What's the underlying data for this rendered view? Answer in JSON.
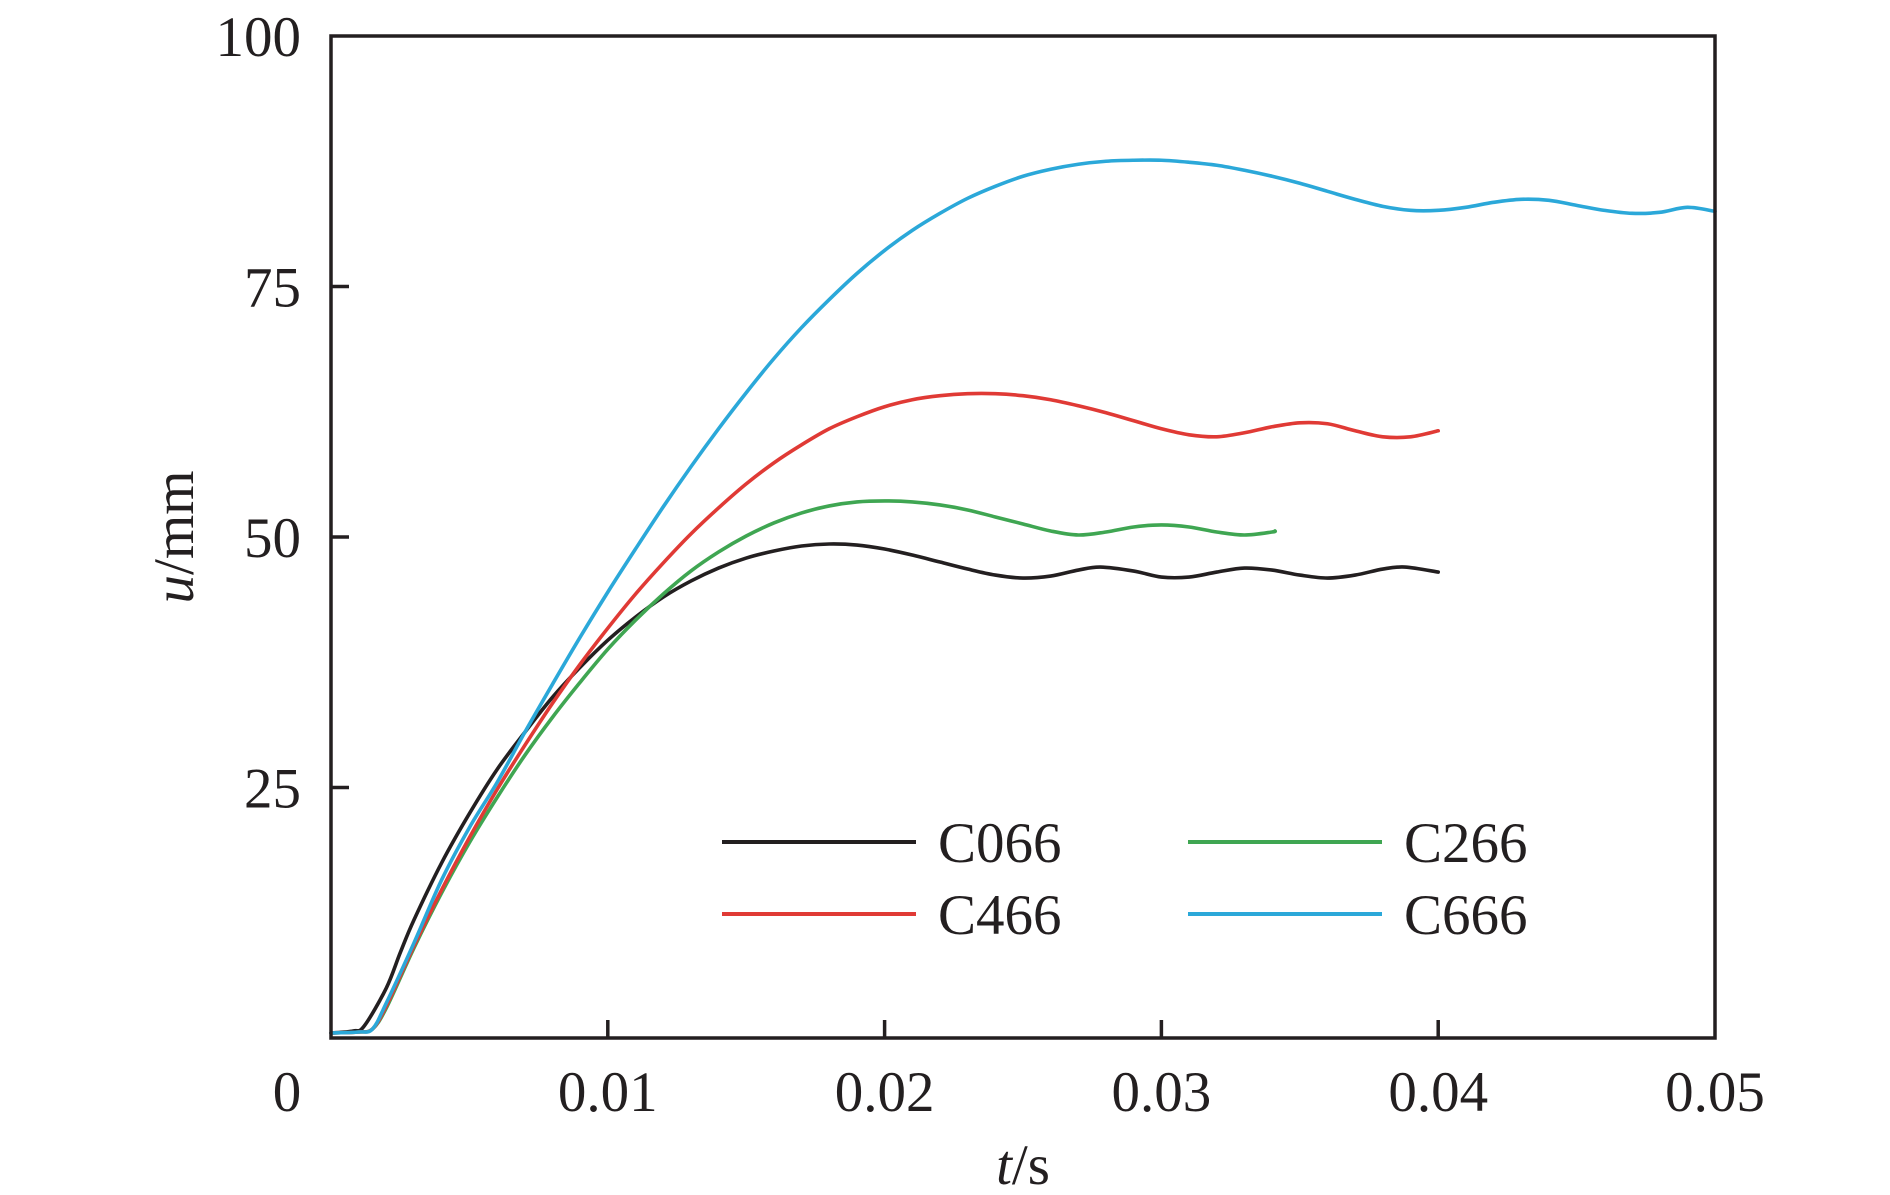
{
  "chart_data": {
    "type": "line",
    "title": "",
    "xlabel": {
      "var": "t",
      "unit": "/s"
    },
    "ylabel": {
      "var": "u",
      "unit": "/mm"
    },
    "xlim": [
      0,
      0.05
    ],
    "ylim": [
      0,
      100
    ],
    "x_ticks": [
      {
        "value": 0,
        "label": "0"
      },
      {
        "value": 0.01,
        "label": "0.01"
      },
      {
        "value": 0.02,
        "label": "0.02"
      },
      {
        "value": 0.03,
        "label": "0.03"
      },
      {
        "value": 0.04,
        "label": "0.04"
      },
      {
        "value": 0.05,
        "label": "0.05"
      }
    ],
    "y_ticks": [
      {
        "value": 25,
        "label": "25"
      },
      {
        "value": 50,
        "label": "50"
      },
      {
        "value": 75,
        "label": "75"
      },
      {
        "value": 100,
        "label": "100"
      }
    ],
    "grid": false,
    "legend": {
      "position": "lower-right",
      "columns": 2
    },
    "series": [
      {
        "name": "C066",
        "color": "#231f20",
        "points": [
          [
            0,
            0.5
          ],
          [
            0.0008,
            0.7
          ],
          [
            0.0012,
            1.2
          ],
          [
            0.002,
            5
          ],
          [
            0.0025,
            8.5
          ],
          [
            0.003,
            11.8
          ],
          [
            0.004,
            17.5
          ],
          [
            0.005,
            22.4
          ],
          [
            0.006,
            26.8
          ],
          [
            0.007,
            30.5
          ],
          [
            0.008,
            34
          ],
          [
            0.009,
            37
          ],
          [
            0.01,
            39.7
          ],
          [
            0.011,
            42
          ],
          [
            0.012,
            44
          ],
          [
            0.013,
            45.6
          ],
          [
            0.014,
            46.9
          ],
          [
            0.015,
            47.9
          ],
          [
            0.016,
            48.6
          ],
          [
            0.017,
            49.1
          ],
          [
            0.018,
            49.3
          ],
          [
            0.019,
            49.2
          ],
          [
            0.02,
            48.8
          ],
          [
            0.021,
            48.2
          ],
          [
            0.022,
            47.5
          ],
          [
            0.023,
            46.8
          ],
          [
            0.024,
            46.2
          ],
          [
            0.025,
            45.9
          ],
          [
            0.026,
            46.1
          ],
          [
            0.027,
            46.7
          ],
          [
            0.0278,
            47
          ],
          [
            0.029,
            46.6
          ],
          [
            0.03,
            46
          ],
          [
            0.031,
            46
          ],
          [
            0.032,
            46.5
          ],
          [
            0.033,
            46.9
          ],
          [
            0.034,
            46.7
          ],
          [
            0.035,
            46.2
          ],
          [
            0.036,
            45.9
          ],
          [
            0.037,
            46.2
          ],
          [
            0.038,
            46.8
          ],
          [
            0.0388,
            47
          ],
          [
            0.04,
            46.5
          ]
        ]
      },
      {
        "name": "C266",
        "color": "#3fa652",
        "points": [
          [
            0,
            0.5
          ],
          [
            0.001,
            0.6
          ],
          [
            0.0015,
            0.9
          ],
          [
            0.002,
            3
          ],
          [
            0.003,
            9
          ],
          [
            0.004,
            14.5
          ],
          [
            0.005,
            19.5
          ],
          [
            0.006,
            24
          ],
          [
            0.007,
            28.2
          ],
          [
            0.008,
            32
          ],
          [
            0.009,
            35.5
          ],
          [
            0.01,
            38.8
          ],
          [
            0.011,
            41.7
          ],
          [
            0.012,
            44.3
          ],
          [
            0.013,
            46.6
          ],
          [
            0.014,
            48.5
          ],
          [
            0.015,
            50.1
          ],
          [
            0.016,
            51.4
          ],
          [
            0.017,
            52.4
          ],
          [
            0.018,
            53.1
          ],
          [
            0.019,
            53.5
          ],
          [
            0.02,
            53.6
          ],
          [
            0.021,
            53.5
          ],
          [
            0.022,
            53.2
          ],
          [
            0.023,
            52.7
          ],
          [
            0.024,
            52
          ],
          [
            0.025,
            51.3
          ],
          [
            0.026,
            50.6
          ],
          [
            0.027,
            50.2
          ],
          [
            0.028,
            50.5
          ],
          [
            0.029,
            51
          ],
          [
            0.03,
            51.2
          ],
          [
            0.031,
            51
          ],
          [
            0.032,
            50.5
          ],
          [
            0.033,
            50.2
          ],
          [
            0.034,
            50.5
          ],
          [
            0.0341,
            50.6
          ]
        ]
      },
      {
        "name": "C466",
        "color": "#e03a35",
        "points": [
          [
            0,
            0.5
          ],
          [
            0.001,
            0.6
          ],
          [
            0.0015,
            0.9
          ],
          [
            0.002,
            3.2
          ],
          [
            0.003,
            9.2
          ],
          [
            0.004,
            14.8
          ],
          [
            0.005,
            20
          ],
          [
            0.006,
            24.8
          ],
          [
            0.007,
            29.2
          ],
          [
            0.008,
            33.4
          ],
          [
            0.009,
            37.3
          ],
          [
            0.01,
            40.9
          ],
          [
            0.011,
            44.3
          ],
          [
            0.012,
            47.4
          ],
          [
            0.013,
            50.3
          ],
          [
            0.014,
            52.9
          ],
          [
            0.015,
            55.3
          ],
          [
            0.016,
            57.4
          ],
          [
            0.017,
            59.2
          ],
          [
            0.018,
            60.8
          ],
          [
            0.019,
            62
          ],
          [
            0.02,
            63
          ],
          [
            0.021,
            63.7
          ],
          [
            0.022,
            64.1
          ],
          [
            0.023,
            64.3
          ],
          [
            0.024,
            64.3
          ],
          [
            0.025,
            64.1
          ],
          [
            0.026,
            63.7
          ],
          [
            0.027,
            63.1
          ],
          [
            0.028,
            62.4
          ],
          [
            0.029,
            61.6
          ],
          [
            0.03,
            60.8
          ],
          [
            0.031,
            60.2
          ],
          [
            0.032,
            60
          ],
          [
            0.033,
            60.4
          ],
          [
            0.034,
            61
          ],
          [
            0.035,
            61.4
          ],
          [
            0.036,
            61.3
          ],
          [
            0.037,
            60.6
          ],
          [
            0.038,
            60
          ],
          [
            0.039,
            60
          ],
          [
            0.04,
            60.6
          ]
        ]
      },
      {
        "name": "C666",
        "color": "#2ba8d9",
        "points": [
          [
            0,
            0.5
          ],
          [
            0.001,
            0.6
          ],
          [
            0.0015,
            0.9
          ],
          [
            0.002,
            3.5
          ],
          [
            0.003,
            9.5
          ],
          [
            0.004,
            15.8
          ],
          [
            0.005,
            21
          ],
          [
            0.006,
            25.5
          ],
          [
            0.007,
            30.5
          ],
          [
            0.008,
            35.3
          ],
          [
            0.009,
            40
          ],
          [
            0.01,
            44.5
          ],
          [
            0.011,
            48.8
          ],
          [
            0.012,
            53
          ],
          [
            0.013,
            57
          ],
          [
            0.014,
            60.8
          ],
          [
            0.015,
            64.4
          ],
          [
            0.016,
            67.8
          ],
          [
            0.017,
            70.9
          ],
          [
            0.018,
            73.7
          ],
          [
            0.019,
            76.3
          ],
          [
            0.02,
            78.6
          ],
          [
            0.021,
            80.6
          ],
          [
            0.022,
            82.3
          ],
          [
            0.023,
            83.8
          ],
          [
            0.024,
            85
          ],
          [
            0.025,
            86
          ],
          [
            0.026,
            86.7
          ],
          [
            0.027,
            87.2
          ],
          [
            0.028,
            87.5
          ],
          [
            0.029,
            87.6
          ],
          [
            0.03,
            87.6
          ],
          [
            0.031,
            87.4
          ],
          [
            0.032,
            87.1
          ],
          [
            0.033,
            86.6
          ],
          [
            0.034,
            86
          ],
          [
            0.035,
            85.3
          ],
          [
            0.036,
            84.5
          ],
          [
            0.037,
            83.7
          ],
          [
            0.038,
            83
          ],
          [
            0.039,
            82.6
          ],
          [
            0.04,
            82.6
          ],
          [
            0.041,
            82.9
          ],
          [
            0.042,
            83.4
          ],
          [
            0.043,
            83.7
          ],
          [
            0.044,
            83.6
          ],
          [
            0.045,
            83.1
          ],
          [
            0.046,
            82.6
          ],
          [
            0.047,
            82.3
          ],
          [
            0.048,
            82.4
          ],
          [
            0.049,
            82.9
          ],
          [
            0.05,
            82.5
          ]
        ]
      }
    ]
  }
}
